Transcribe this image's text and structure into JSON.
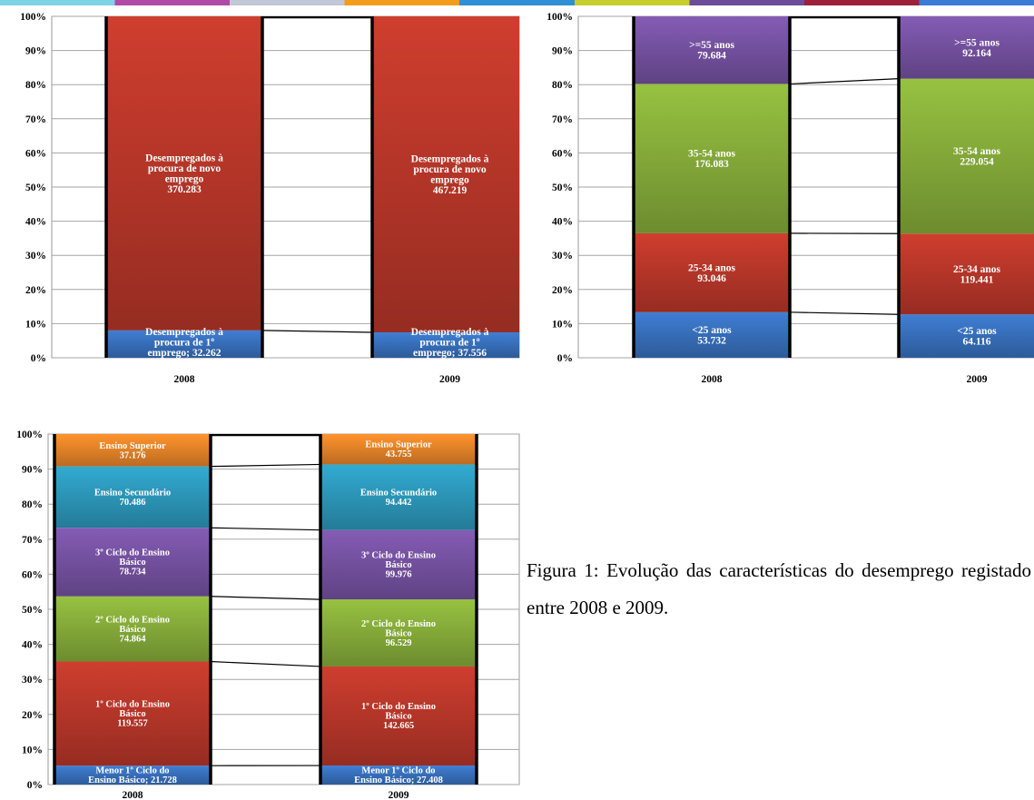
{
  "top_band_colors": [
    "#7ed3e6",
    "#b04aa6",
    "#c0c7d6",
    "#f39c1c",
    "#2f8fd4",
    "#c6cf2b",
    "#6b4c9a",
    "#9e1f3a",
    "#3a7bd5"
  ],
  "y_ticks": [
    "100%",
    "90%",
    "80%",
    "70%",
    "60%",
    "50%",
    "40%",
    "30%",
    "20%",
    "10%",
    "0%"
  ],
  "chart_data": [
    {
      "type": "bar",
      "stacked": "100%",
      "categories": [
        "2008",
        "2009"
      ],
      "ylim": [
        0,
        100
      ],
      "grid": true,
      "series": [
        {
          "name": "Desempregados à procura de 1º emprego",
          "values": [
            32262,
            37556
          ],
          "color": "#3a75c4",
          "labels": [
            [
              "Desempregados à",
              "procura de 1º",
              "emprego; 32.262"
            ],
            [
              "Desempregados à",
              "procura de 1º",
              "emprego; 37.556"
            ]
          ]
        },
        {
          "name": "Desempregados à procura de novo emprego",
          "values": [
            370283,
            467219
          ],
          "color": "#c0392b",
          "labels": [
            [
              "Desempregados à",
              "procura de novo",
              "emprego",
              "370.283"
            ],
            [
              "Desempregados à",
              "procura de novo",
              "emprego",
              "467.219"
            ]
          ]
        }
      ]
    },
    {
      "type": "bar",
      "stacked": "100%",
      "categories": [
        "2008",
        "2009"
      ],
      "ylim": [
        0,
        100
      ],
      "grid": true,
      "series": [
        {
          "name": "<25 anos",
          "values": [
            53732,
            64116
          ],
          "color": "#3a75c4",
          "labels": [
            [
              "<25 anos",
              "53.732"
            ],
            [
              "<25 anos",
              "64.116"
            ]
          ]
        },
        {
          "name": "25-34 anos",
          "values": [
            93046,
            119441
          ],
          "color": "#c0392b",
          "labels": [
            [
              "25-34 anos",
              "93.046"
            ],
            [
              "25-34 anos",
              "119.441"
            ]
          ]
        },
        {
          "name": "35-54 anos",
          "values": [
            176083,
            229054
          ],
          "color": "#8cb43c",
          "labels": [
            [
              "35-54 anos",
              "176.083"
            ],
            [
              "35-54 anos",
              "229.054"
            ]
          ]
        },
        {
          "name": ">=55 anos",
          "values": [
            79684,
            92164
          ],
          "color": "#7a55a8",
          "labels": [
            [
              ">=55 anos",
              "79.684"
            ],
            [
              ">=55 anos",
              "92.164"
            ]
          ]
        }
      ]
    },
    {
      "type": "bar",
      "stacked": "100%",
      "categories": [
        "2008",
        "2009"
      ],
      "ylim": [
        0,
        100
      ],
      "grid": true,
      "series": [
        {
          "name": "Menor 1º Ciclo do Ensino Básico",
          "values": [
            21728,
            27408
          ],
          "color": "#3a75c4",
          "labels": [
            [
              "Menor 1º Ciclo do",
              "Ensino Básico; 21.728"
            ],
            [
              "Menor 1º Ciclo do",
              "Ensino Básico; 27.408"
            ]
          ]
        },
        {
          "name": "1º Ciclo do Ensino Básico",
          "values": [
            119557,
            142665
          ],
          "color": "#c0392b",
          "labels": [
            [
              "1º Ciclo do Ensino",
              "Básico",
              "119.557"
            ],
            [
              "1º Ciclo do Ensino",
              "Básico",
              "142.665"
            ]
          ]
        },
        {
          "name": "2º Ciclo do Ensino Básico",
          "values": [
            74864,
            96529
          ],
          "color": "#8cb43c",
          "labels": [
            [
              "2º Ciclo do Ensino",
              "Básico",
              "74.864"
            ],
            [
              "2º Ciclo do Ensino",
              "Básico",
              "96.529"
            ]
          ]
        },
        {
          "name": "3º Ciclo do Ensino Básico",
          "values": [
            78734,
            99976
          ],
          "color": "#7a55a8",
          "labels": [
            [
              "3º Ciclo do Ensino",
              "Básico",
              "78.734"
            ],
            [
              "3º Ciclo do Ensino",
              "Básico",
              "99.976"
            ]
          ]
        },
        {
          "name": "Ensino Secundário",
          "values": [
            70486,
            94442
          ],
          "color": "#2e9ec2",
          "labels": [
            [
              "Ensino Secundário",
              "70.486"
            ],
            [
              "Ensino Secundário",
              "94.442"
            ]
          ]
        },
        {
          "name": "Ensino Superior",
          "values": [
            37176,
            43755
          ],
          "color": "#f0892a",
          "labels": [
            [
              "Ensino Superior",
              "37.176"
            ],
            [
              "Ensino Superior",
              "43.755"
            ]
          ]
        }
      ]
    }
  ],
  "caption": {
    "text": "Figura 1: Evolução das características do desemprego registado entre 2008 e 2009."
  }
}
